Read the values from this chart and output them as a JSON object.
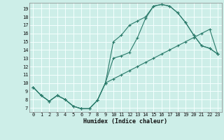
{
  "xlabel": "Humidex (Indice chaleur)",
  "bg_color": "#cdeee8",
  "grid_color": "#f5fffe",
  "line_color": "#2a7a6a",
  "spine_color": "#888888",
  "xlim": [
    -0.5,
    23.5
  ],
  "ylim": [
    6.5,
    19.7
  ],
  "xticks": [
    0,
    1,
    2,
    3,
    4,
    5,
    6,
    7,
    8,
    9,
    10,
    11,
    12,
    13,
    14,
    15,
    16,
    17,
    18,
    19,
    20,
    21,
    22,
    23
  ],
  "yticks": [
    7,
    8,
    9,
    10,
    11,
    12,
    13,
    14,
    15,
    16,
    17,
    18,
    19
  ],
  "line1_x": [
    0,
    1,
    2,
    3,
    4,
    5,
    6,
    7,
    8,
    9,
    10,
    11,
    12,
    13,
    14,
    15,
    16,
    17,
    18,
    19,
    20,
    21,
    22,
    23
  ],
  "line1_y": [
    9.5,
    8.5,
    7.8,
    8.5,
    8.0,
    7.2,
    6.9,
    6.9,
    7.9,
    10.0,
    10.5,
    11.0,
    11.5,
    12.0,
    12.5,
    13.0,
    13.5,
    14.0,
    14.5,
    15.0,
    15.5,
    16.0,
    16.5,
    13.5
  ],
  "line2_x": [
    0,
    1,
    2,
    3,
    4,
    5,
    6,
    7,
    8,
    9,
    10,
    11,
    12,
    13,
    14,
    15,
    16,
    17,
    18,
    19,
    20,
    21,
    22,
    23
  ],
  "line2_y": [
    9.5,
    8.5,
    7.8,
    8.5,
    8.0,
    7.2,
    6.9,
    6.9,
    7.9,
    10.0,
    15.0,
    15.8,
    17.0,
    17.5,
    18.0,
    19.3,
    19.5,
    19.3,
    18.5,
    17.3,
    15.8,
    14.5,
    14.2,
    13.5
  ],
  "line3_x": [
    0,
    1,
    2,
    3,
    4,
    5,
    6,
    7,
    8,
    9,
    10,
    11,
    12,
    13,
    14,
    15,
    16,
    17,
    18,
    19,
    20,
    21,
    22,
    23
  ],
  "line3_y": [
    9.5,
    8.5,
    7.8,
    8.5,
    8.0,
    7.2,
    6.9,
    6.9,
    7.9,
    10.0,
    13.0,
    13.3,
    13.7,
    15.5,
    17.8,
    19.3,
    19.5,
    19.3,
    18.5,
    17.3,
    15.8,
    14.5,
    14.2,
    13.5
  ],
  "tick_fontsize": 5.0,
  "xlabel_fontsize": 6.0,
  "marker_size": 2.5,
  "line_width": 0.8
}
